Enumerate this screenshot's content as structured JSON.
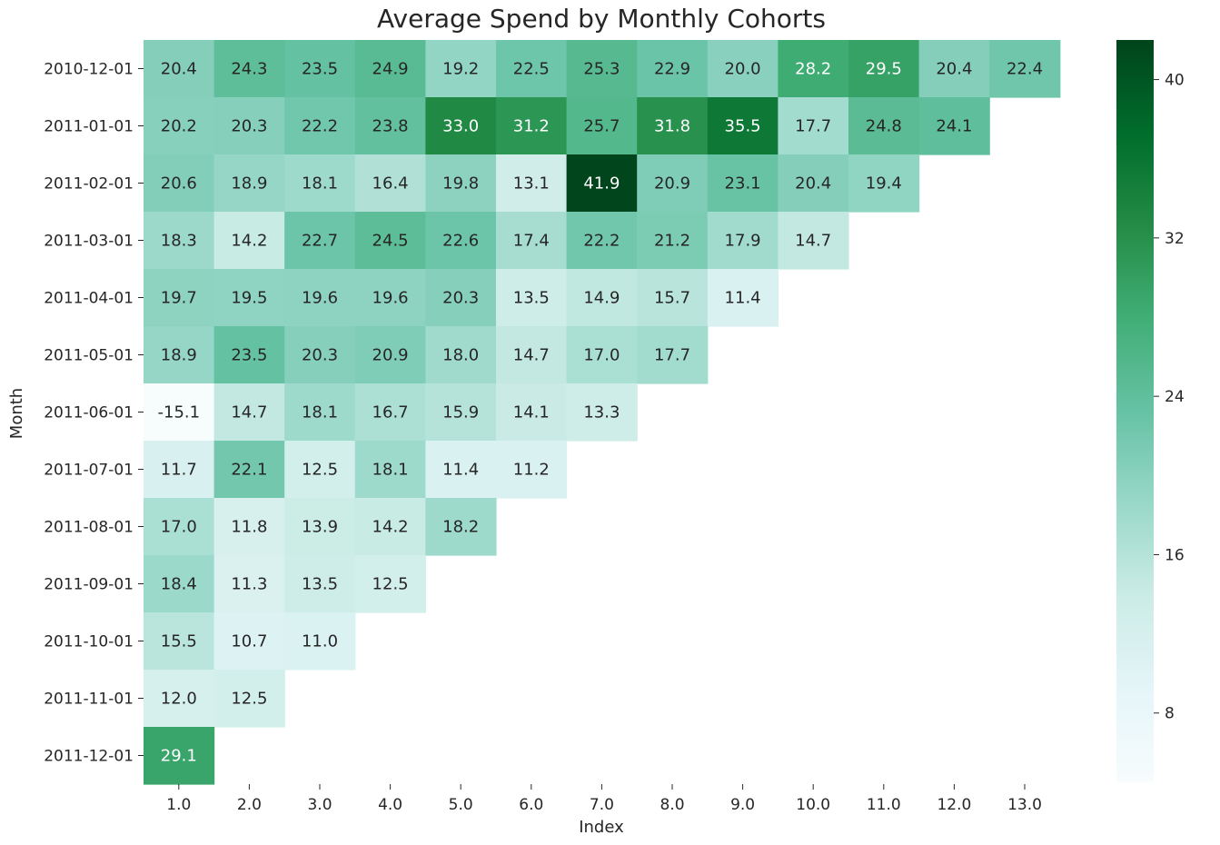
{
  "chart_data": {
    "type": "heatmap",
    "title": "Average Spend by Monthly Cohorts",
    "xlabel": "Index",
    "ylabel": "Month",
    "x_categories": [
      "1.0",
      "2.0",
      "3.0",
      "4.0",
      "5.0",
      "6.0",
      "7.0",
      "8.0",
      "9.0",
      "10.0",
      "11.0",
      "12.0",
      "13.0"
    ],
    "y_categories": [
      "2010-12-01",
      "2011-01-01",
      "2011-02-01",
      "2011-03-01",
      "2011-04-01",
      "2011-05-01",
      "2011-06-01",
      "2011-07-01",
      "2011-08-01",
      "2011-09-01",
      "2011-10-01",
      "2011-11-01",
      "2011-12-01"
    ],
    "values": [
      [
        20.4,
        24.3,
        23.5,
        24.9,
        19.2,
        22.5,
        25.3,
        22.9,
        20.0,
        28.2,
        29.5,
        20.4,
        22.4
      ],
      [
        20.2,
        20.3,
        22.2,
        23.8,
        33.0,
        31.2,
        25.7,
        31.8,
        35.5,
        17.7,
        24.8,
        24.1
      ],
      [
        20.6,
        18.9,
        18.1,
        16.4,
        19.8,
        13.1,
        41.9,
        20.9,
        23.1,
        20.4,
        19.4
      ],
      [
        18.3,
        14.2,
        22.7,
        24.5,
        22.6,
        17.4,
        22.2,
        21.2,
        17.9,
        14.7
      ],
      [
        19.7,
        19.5,
        19.6,
        19.6,
        20.3,
        13.5,
        14.9,
        15.7,
        11.4
      ],
      [
        18.9,
        23.5,
        20.3,
        20.9,
        18.0,
        14.7,
        17.0,
        17.7
      ],
      [
        -15.1,
        14.7,
        18.1,
        16.7,
        15.9,
        14.1,
        13.3
      ],
      [
        11.7,
        22.1,
        12.5,
        18.1,
        11.4,
        11.2
      ],
      [
        17.0,
        11.8,
        13.9,
        14.2,
        18.2
      ],
      [
        18.4,
        11.3,
        13.5,
        12.5
      ],
      [
        15.5,
        10.7,
        11.0
      ],
      [
        12.0,
        12.5
      ],
      [
        29.1
      ]
    ],
    "colorbar": {
      "vmin": 4.5,
      "vmax": 42.0,
      "ticks": [
        8,
        16,
        24,
        32,
        40
      ],
      "colors": [
        "#f7fcfd",
        "#e5f5f9",
        "#ccece6",
        "#99d8c9",
        "#66c2a4",
        "#41ae76",
        "#238b45",
        "#006d2c",
        "#00441b"
      ]
    }
  }
}
